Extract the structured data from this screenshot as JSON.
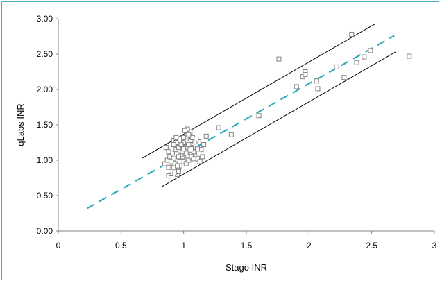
{
  "chart_data": {
    "type": "scatter",
    "title": "",
    "xlabel": "Stago INR",
    "ylabel": "qLabs INR",
    "xlim": [
      0,
      3
    ],
    "ylim": [
      0,
      3
    ],
    "x_ticks": [
      "0",
      "0.5",
      "1",
      "1.5",
      "2",
      "2.5",
      "3"
    ],
    "y_ticks": [
      "0.00",
      "0.50",
      "1.00",
      "1.50",
      "2.00",
      "2.50",
      "3.00"
    ],
    "grid": false,
    "legend": "none",
    "colors": {
      "points": "#808080",
      "regression": "#1fa7b8",
      "limits": "#000000",
      "frame": "#4bacc6"
    },
    "series": [
      {
        "type": "scatter",
        "marker": "open-square",
        "points": [
          [
            0.88,
            0.78
          ],
          [
            0.9,
            0.85
          ],
          [
            0.92,
            0.9
          ],
          [
            0.93,
            0.95
          ],
          [
            0.95,
            0.8
          ],
          [
            0.96,
            0.88
          ],
          [
            0.97,
            0.92
          ],
          [
            0.98,
            1.0
          ],
          [
            0.99,
            1.05
          ],
          [
            1.0,
            1.1
          ],
          [
            1.01,
            1.15
          ],
          [
            1.02,
            1.2
          ],
          [
            1.03,
            1.25
          ],
          [
            1.04,
            1.3
          ],
          [
            1.05,
            1.35
          ],
          [
            1.06,
            1.28
          ],
          [
            1.07,
            1.22
          ],
          [
            1.08,
            1.18
          ],
          [
            1.09,
            1.12
          ],
          [
            1.1,
            1.08
          ],
          [
            1.11,
            1.02
          ],
          [
            0.85,
            0.95
          ],
          [
            0.87,
            1.0
          ],
          [
            0.89,
            1.05
          ],
          [
            0.91,
            1.1
          ],
          [
            0.94,
            1.15
          ],
          [
            0.97,
            1.2
          ],
          [
            1.0,
            1.25
          ],
          [
            1.02,
            1.3
          ],
          [
            1.05,
            1.4
          ],
          [
            1.03,
            1.44
          ],
          [
            1.01,
            1.42
          ],
          [
            0.92,
            1.28
          ],
          [
            0.94,
            1.32
          ],
          [
            0.96,
            1.18
          ],
          [
            0.98,
            1.08
          ],
          [
            1.0,
            0.98
          ],
          [
            1.02,
            0.95
          ],
          [
            1.04,
            1.0
          ],
          [
            1.06,
            1.05
          ],
          [
            1.08,
            1.12
          ],
          [
            1.1,
            1.2
          ],
          [
            1.12,
            1.26
          ],
          [
            1.14,
            1.15
          ],
          [
            1.16,
            1.22
          ],
          [
            1.18,
            1.34
          ],
          [
            1.15,
            1.05
          ],
          [
            1.13,
            0.98
          ],
          [
            0.9,
            0.75
          ],
          [
            0.93,
            0.82
          ],
          [
            0.95,
            0.92
          ],
          [
            0.97,
            0.98
          ],
          [
            0.99,
            1.12
          ],
          [
            1.01,
            1.18
          ],
          [
            1.03,
            1.06
          ],
          [
            1.05,
            1.14
          ],
          [
            1.07,
            1.32
          ],
          [
            1.09,
            1.26
          ],
          [
            1.11,
            1.16
          ],
          [
            0.86,
            1.18
          ],
          [
            0.88,
            1.12
          ],
          [
            0.92,
            1.02
          ],
          [
            0.96,
            1.05
          ],
          [
            1.0,
            1.16
          ],
          [
            1.04,
            1.22
          ],
          [
            1.08,
            1.02
          ],
          [
            1.1,
            1.3
          ],
          [
            1.12,
            1.1
          ],
          [
            0.94,
            1.25
          ],
          [
            0.98,
            1.22
          ],
          [
            1.02,
            1.1
          ],
          [
            1.06,
            1.16
          ],
          [
            0.9,
            0.98
          ],
          [
            0.92,
            1.22
          ],
          [
            1.0,
            1.32
          ],
          [
            1.04,
            1.36
          ],
          [
            0.88,
            0.9
          ],
          [
            0.96,
            0.84
          ],
          [
            1.28,
            1.46
          ],
          [
            1.38,
            1.36
          ],
          [
            1.6,
            1.63
          ],
          [
            1.76,
            2.43
          ],
          [
            1.9,
            2.04
          ],
          [
            1.95,
            2.18
          ],
          [
            1.97,
            2.25
          ],
          [
            1.97,
            2.21
          ],
          [
            2.06,
            2.12
          ],
          [
            2.07,
            2.01
          ],
          [
            2.22,
            2.32
          ],
          [
            2.28,
            2.17
          ],
          [
            2.34,
            2.78
          ],
          [
            2.38,
            2.38
          ],
          [
            2.44,
            2.46
          ],
          [
            2.49,
            2.55
          ],
          [
            2.8,
            2.47
          ]
        ]
      },
      {
        "type": "line",
        "style": "dashed",
        "role": "regression",
        "from": [
          0.23,
          0.32
        ],
        "to": [
          2.68,
          2.76
        ]
      },
      {
        "type": "line",
        "style": "solid",
        "role": "upper-limit",
        "from": [
          0.67,
          1.03
        ],
        "to": [
          2.53,
          2.93
        ]
      },
      {
        "type": "line",
        "style": "solid",
        "role": "lower-limit",
        "from": [
          0.83,
          0.63
        ],
        "to": [
          2.69,
          2.53
        ]
      }
    ]
  }
}
